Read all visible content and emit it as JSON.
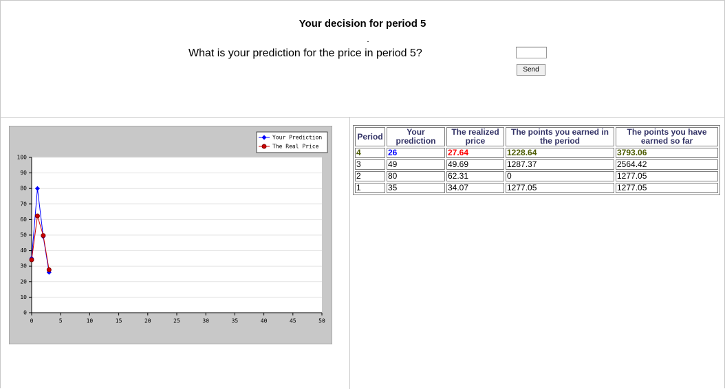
{
  "header": {
    "title": "Your decision for period 5",
    "question": "What is your prediction for the price in period 5?",
    "button": "Send"
  },
  "chart_data": {
    "type": "line",
    "x": [
      0,
      1,
      2,
      3
    ],
    "series": [
      {
        "name": "Your Prediction",
        "color": "#0000ff",
        "values": [
          35,
          80,
          49,
          26
        ]
      },
      {
        "name": "The Real Price",
        "color": "#cc0000",
        "values": [
          34.07,
          62.31,
          49.69,
          27.64
        ]
      }
    ],
    "xlim": [
      0,
      50
    ],
    "ylim": [
      0,
      100
    ],
    "xticks": [
      0,
      5,
      10,
      15,
      20,
      25,
      30,
      35,
      40,
      45,
      50
    ],
    "yticks": [
      0,
      10,
      20,
      30,
      40,
      50,
      60,
      70,
      80,
      90,
      100
    ],
    "grid": true,
    "legend": "upper right"
  },
  "table": {
    "columns": [
      "Period",
      "Your prediction",
      "The realized price",
      "The points you earned in the period",
      "The points you have earned so far"
    ],
    "rows": [
      [
        4,
        26,
        27.64,
        1228.64,
        3793.06
      ],
      [
        3,
        49,
        49.69,
        1287.37,
        2564.42
      ],
      [
        2,
        80,
        62.31,
        0,
        1277.05
      ],
      [
        1,
        35,
        34.07,
        1277.05,
        1277.05
      ]
    ]
  }
}
